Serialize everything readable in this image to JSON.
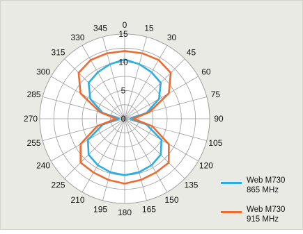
{
  "chart_data": {
    "type": "polar-line",
    "title": "",
    "angle_ticks": [
      "0",
      "15",
      "30",
      "45",
      "60",
      "75",
      "90",
      "105",
      "120",
      "135",
      "150",
      "165",
      "180",
      "195",
      "210",
      "225",
      "240",
      "255",
      "270",
      "285",
      "300",
      "315",
      "330",
      "345"
    ],
    "radial_ticks": [
      "0",
      "5",
      "10",
      "15"
    ],
    "rlim": [
      0,
      15
    ],
    "grid": true,
    "legend_position": "bottom-right",
    "angles": [
      0,
      15,
      30,
      45,
      60,
      75,
      90,
      105,
      120,
      135,
      150,
      165,
      180,
      195,
      210,
      225,
      240,
      255,
      270,
      285,
      300,
      315,
      330,
      345
    ],
    "series": [
      {
        "name": "Web M730\n865 MHz",
        "color": "#29aee6",
        "values": [
          10.5,
          10.0,
          9.5,
          9.0,
          7.0,
          4.0,
          1.0,
          4.0,
          7.5,
          9.0,
          9.5,
          9.8,
          10.0,
          9.8,
          9.5,
          9.0,
          7.5,
          4.0,
          1.0,
          4.0,
          7.0,
          9.0,
          9.5,
          10.0
        ]
      },
      {
        "name": "Web M730\n915 MHz",
        "color": "#ef6a2f",
        "values": [
          12.0,
          12.0,
          12.0,
          11.5,
          9.0,
          4.5,
          1.5,
          5.0,
          9.0,
          11.0,
          11.0,
          11.2,
          11.5,
          11.2,
          11.0,
          11.0,
          9.0,
          5.0,
          1.5,
          4.5,
          9.0,
          11.5,
          12.0,
          12.0
        ]
      }
    ]
  }
}
